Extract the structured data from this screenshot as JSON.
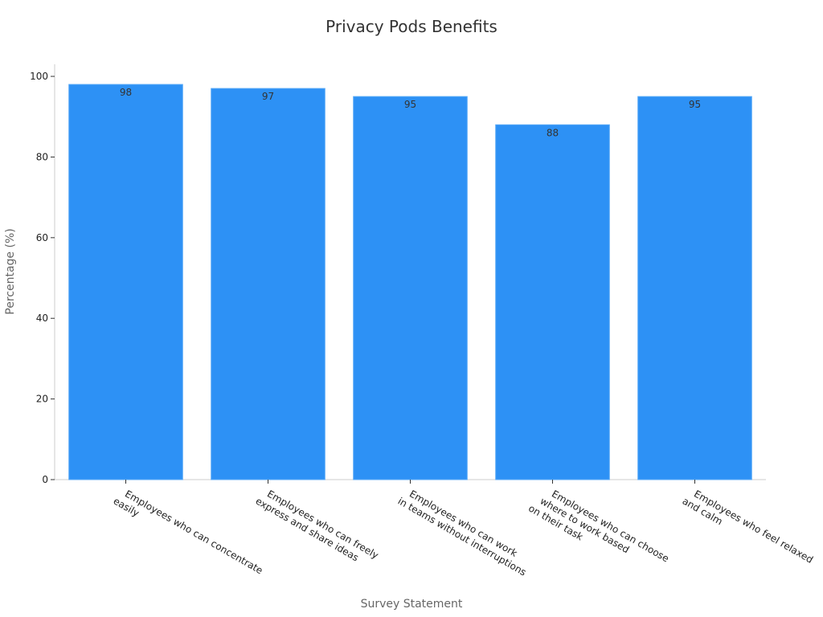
{
  "chart_data": {
    "type": "bar",
    "title": "Privacy Pods Benefits",
    "xlabel": "Survey Statement",
    "ylabel": "Percentage (%)",
    "categories": [
      [
        "Employees who can concentrate",
        "easily"
      ],
      [
        "Employees who can freely",
        "express and share ideas"
      ],
      [
        "Employees who can work",
        "in teams without interruptions"
      ],
      [
        "Employees who can choose",
        "where to work based",
        "on their task"
      ],
      [
        "Employees who feel relaxed",
        "and calm"
      ]
    ],
    "values": [
      98,
      97,
      95,
      88,
      95
    ],
    "ylim": [
      0,
      103
    ],
    "yticks": [
      0,
      20,
      40,
      60,
      80,
      100
    ],
    "bar_color": "#2d91f5",
    "grid": false,
    "legend": "none"
  }
}
